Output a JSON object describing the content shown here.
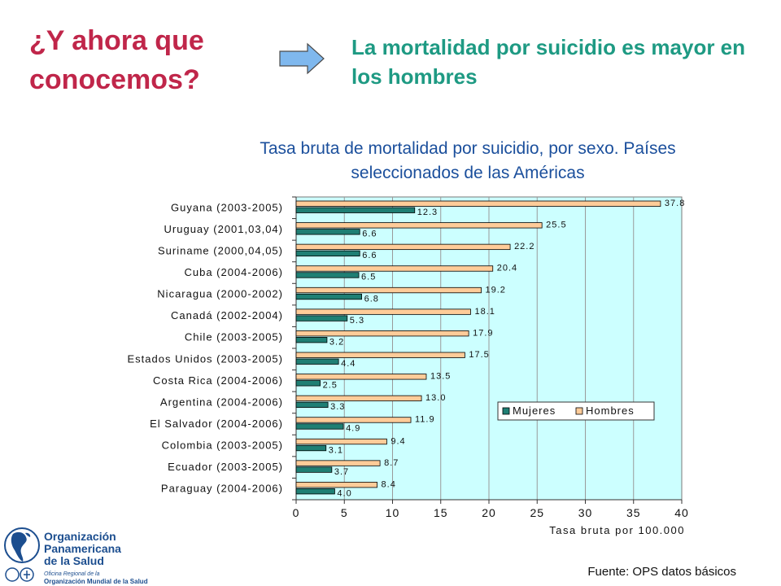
{
  "slide": {
    "question": "¿Y ahora que conocemos?",
    "headline": "La mortalidad por suicidio es mayor en los hombres",
    "source": "Fuente: OPS datos básicos"
  },
  "org": {
    "line1": "Organización",
    "line2": "Panamericana",
    "line3": "de la Salud",
    "sub1": "Oficina Regional de la",
    "sub2": "Organización Mundial de la Salud"
  },
  "colors": {
    "question": "#c0264a",
    "headline": "#1e9a83",
    "chart_title": "#1b4f9c",
    "plot_bg": "#ccffff",
    "mujeres": "#1f7f74",
    "hombres": "#ffcc99",
    "org": "#1c4e8f"
  },
  "chart_data": {
    "type": "bar",
    "orientation": "horizontal",
    "title": "Tasa bruta de mortalidad por suicidio, por sexo. Países seleccionados de las Américas",
    "xlabel": "Tasa bruta por 100.000",
    "xlim": [
      0,
      40
    ],
    "xticks": [
      "0",
      "5",
      "10",
      "15",
      "20",
      "25",
      "30",
      "35",
      "40"
    ],
    "grid": "vertical",
    "legend_position": "center-right",
    "categories": [
      "Guyana (2003-2005)",
      "Uruguay (2001,03,04)",
      "Suriname (2000,04,05)",
      "Cuba (2004-2006)",
      "Nicaragua (2000-2002)",
      "Canadá (2002-2004)",
      "Chile (2003-2005)",
      "Estados Unidos (2003-2005)",
      "Costa Rica (2004-2006)",
      "Argentina (2004-2006)",
      "El Salvador (2004-2006)",
      "Colombia (2003-2005)",
      "Ecuador (2003-2005)",
      "Paraguay (2004-2006)"
    ],
    "series": [
      {
        "name": "Hombres",
        "values": [
          37.8,
          25.5,
          22.2,
          20.4,
          19.2,
          18.1,
          17.9,
          17.5,
          13.5,
          13.0,
          11.9,
          9.4,
          8.7,
          8.4
        ],
        "labels": [
          "37.8",
          "25.5",
          "22.2",
          "20.4",
          "19.2",
          "18.1",
          "17.9",
          "17.5",
          "13.5",
          "13.0",
          "11.9",
          "9.4",
          "8.7",
          "8.4"
        ]
      },
      {
        "name": "Mujeres",
        "values": [
          12.3,
          6.6,
          6.6,
          6.5,
          6.8,
          5.3,
          3.2,
          4.4,
          2.5,
          3.3,
          4.9,
          3.1,
          3.7,
          4.0
        ],
        "labels": [
          "12.3",
          "6.6",
          "6.6",
          "6.5",
          "6.8",
          "5.3",
          "3.2",
          "4.4",
          "2.5",
          "3.3",
          "4.9",
          "3.1",
          "3.7",
          "4.0"
        ]
      }
    ]
  }
}
